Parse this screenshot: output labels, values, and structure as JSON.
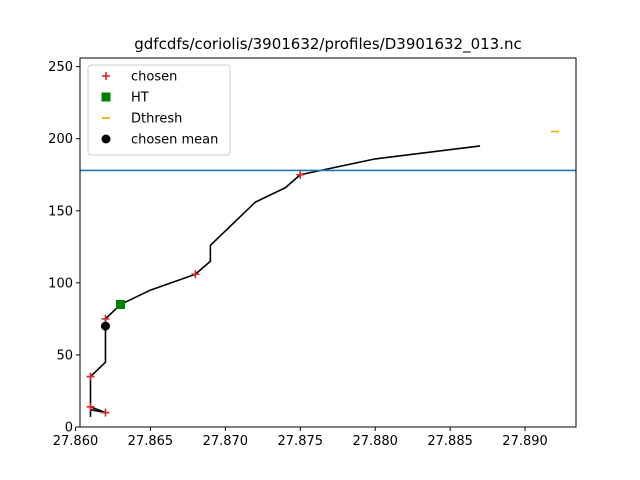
{
  "chart_data": {
    "type": "line",
    "title": "gdfcdfs/coriolis/3901632/profiles/D3901632_013.nc",
    "xlabel": "",
    "ylabel": "",
    "xlim": [
      27.8603,
      27.8934
    ],
    "ylim": [
      0,
      256
    ],
    "x_ticks": [
      "27.860",
      "27.865",
      "27.870",
      "27.875",
      "27.880",
      "27.885",
      "27.890"
    ],
    "x_tick_values": [
      27.86,
      27.865,
      27.87,
      27.875,
      27.88,
      27.885,
      27.89
    ],
    "y_ticks": [
      "0",
      "50",
      "100",
      "150",
      "200",
      "250"
    ],
    "y_tick_values": [
      0,
      50,
      100,
      150,
      200,
      250
    ],
    "grid": false,
    "legend_position": "top-left",
    "series": [
      {
        "name": "",
        "kind": "line",
        "color": "#000000",
        "points": [
          [
            27.861,
            7
          ],
          [
            27.861,
            12
          ],
          [
            27.862,
            10
          ],
          [
            27.861,
            14
          ],
          [
            27.861,
            35
          ],
          [
            27.862,
            45
          ],
          [
            27.862,
            75
          ],
          [
            27.863,
            85
          ],
          [
            27.865,
            95
          ],
          [
            27.868,
            106
          ],
          [
            27.869,
            115
          ],
          [
            27.869,
            126
          ],
          [
            27.872,
            156
          ],
          [
            27.874,
            166
          ],
          [
            27.875,
            175
          ],
          [
            27.88,
            186
          ],
          [
            27.887,
            195
          ]
        ]
      },
      {
        "name": "",
        "kind": "hline",
        "color": "#1f77b4",
        "y": 178
      },
      {
        "name": "chosen",
        "kind": "scatter",
        "marker": "plus",
        "color": "#d62728",
        "points": [
          [
            27.862,
            10
          ],
          [
            27.861,
            14
          ],
          [
            27.861,
            35
          ],
          [
            27.862,
            75
          ],
          [
            27.868,
            106
          ],
          [
            27.875,
            175
          ]
        ]
      },
      {
        "name": "HT",
        "kind": "scatter",
        "marker": "square",
        "color": "#008000",
        "points": [
          [
            27.863,
            85
          ]
        ]
      },
      {
        "name": "Dthresh",
        "kind": "scatter",
        "marker": "hline",
        "color": "#ffa500",
        "points": [
          [
            27.892,
            205
          ]
        ]
      },
      {
        "name": "chosen mean",
        "kind": "scatter",
        "marker": "circle",
        "color": "#000000",
        "points": [
          [
            27.862,
            70
          ]
        ]
      }
    ]
  }
}
